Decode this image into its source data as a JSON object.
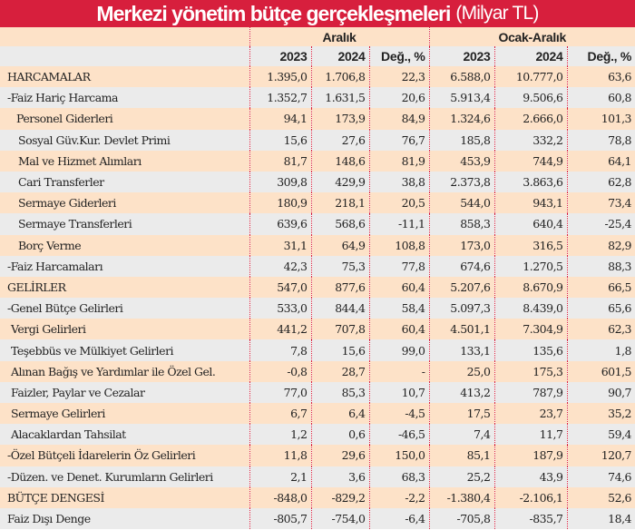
{
  "title": "Merkezi yönetim bütçe gerçekleşmeleri",
  "unit": "(Milyar TL)",
  "groups": [
    "Aralık",
    "Ocak-Aralık"
  ],
  "columns": [
    "2023",
    "2024",
    "Değ., %",
    "2023",
    "2024",
    "Değ., %"
  ],
  "colors": {
    "title_bg": "#d71f3d",
    "row_peach": "#fde2c8",
    "row_gray": "#ebebeb"
  },
  "rows": [
    {
      "label": "HARCAMALAR",
      "values": [
        "1.395,0",
        "1.706,8",
        "22,3",
        "6.588,0",
        "10.777,0",
        "63,6"
      ]
    },
    {
      "label": "-Faiz Hariç Harcama",
      "values": [
        "1.352,7",
        "1.631,5",
        "20,6",
        "5.913,4",
        "9.506,6",
        "60,8"
      ]
    },
    {
      "label": "Personel Giderleri",
      "values": [
        "94,1",
        "173,9",
        "84,9",
        "1.324,6",
        "2.666,0",
        "101,3"
      ]
    },
    {
      "label": "Sosyal Güv.Kur. Devlet Primi",
      "values": [
        "15,6",
        "27,6",
        "76,7",
        "185,8",
        "332,2",
        "78,8"
      ]
    },
    {
      "label": "Mal ve Hizmet Alımları",
      "values": [
        "81,7",
        "148,6",
        "81,9",
        "453,9",
        "744,9",
        "64,1"
      ]
    },
    {
      "label": "Cari Transferler",
      "values": [
        "309,8",
        "429,9",
        "38,8",
        "2.373,8",
        "3.863,6",
        "62,8"
      ]
    },
    {
      "label": "Sermaye Giderleri",
      "values": [
        "180,9",
        "218,1",
        "20,5",
        "544,0",
        "943,1",
        "73,4"
      ]
    },
    {
      "label": "Sermaye Transferleri",
      "values": [
        "639,6",
        "568,6",
        "-11,1",
        "858,3",
        "640,4",
        "-25,4"
      ]
    },
    {
      "label": "Borç Verme",
      "values": [
        "31,1",
        "64,9",
        "108,8",
        "173,0",
        "316,5",
        "82,9"
      ]
    },
    {
      "label": "-Faiz Harcamaları",
      "values": [
        "42,3",
        "75,3",
        "77,8",
        "674,6",
        "1.270,5",
        "88,3"
      ]
    },
    {
      "label": "GELİRLER",
      "values": [
        "547,0",
        "877,6",
        "60,4",
        "5.207,6",
        "8.670,9",
        "66,5"
      ]
    },
    {
      "label": "-Genel Bütçe Gelirleri",
      "values": [
        "533,0",
        "844,4",
        "58,4",
        "5.097,3",
        "8.439,0",
        "65,6"
      ]
    },
    {
      "label": "Vergi Gelirleri",
      "values": [
        "441,2",
        "707,8",
        "60,4",
        "4.501,1",
        "7.304,9",
        "62,3"
      ]
    },
    {
      "label": "Teşebbüs ve Mülkiyet Gelirleri",
      "values": [
        "7,8",
        "15,6",
        "99,0",
        "133,1",
        "135,6",
        "1,8"
      ]
    },
    {
      "label": "Alınan Bağış ve Yardımlar ile Özel Gel.",
      "values": [
        "-0,8",
        "28,7",
        "-",
        "25,0",
        "175,3",
        "601,5"
      ]
    },
    {
      "label": "Faizler, Paylar ve Cezalar",
      "values": [
        "77,0",
        "85,3",
        "10,7",
        "413,2",
        "787,9",
        "90,7"
      ]
    },
    {
      "label": "Sermaye Gelirleri",
      "values": [
        "6,7",
        "6,4",
        "-4,5",
        "17,5",
        "23,7",
        "35,2"
      ]
    },
    {
      "label": "Alacaklardan Tahsilat",
      "values": [
        "1,2",
        "0,6",
        "-46,5",
        "7,4",
        "11,7",
        "59,4"
      ]
    },
    {
      "label": "-Özel Bütçeli İdarelerin Öz Gelirleri",
      "values": [
        "11,8",
        "29,6",
        "150,0",
        "85,1",
        "187,9",
        "120,7"
      ]
    },
    {
      "label": "-Düzen. ve Denet. Kurumların Gelirleri",
      "values": [
        "2,1",
        "3,6",
        "68,3",
        "25,2",
        "43,9",
        "74,6"
      ]
    },
    {
      "label": "BÜTÇE DENGESİ",
      "values": [
        "-848,0",
        "-829,2",
        "-2,2",
        "-1.380,4",
        "-2.106,1",
        "52,6"
      ]
    },
    {
      "label": "Faiz Dışı Denge",
      "values": [
        "-805,7",
        "-754,0",
        "-6,4",
        "-705,8",
        "-835,7",
        "18,4"
      ]
    }
  ]
}
